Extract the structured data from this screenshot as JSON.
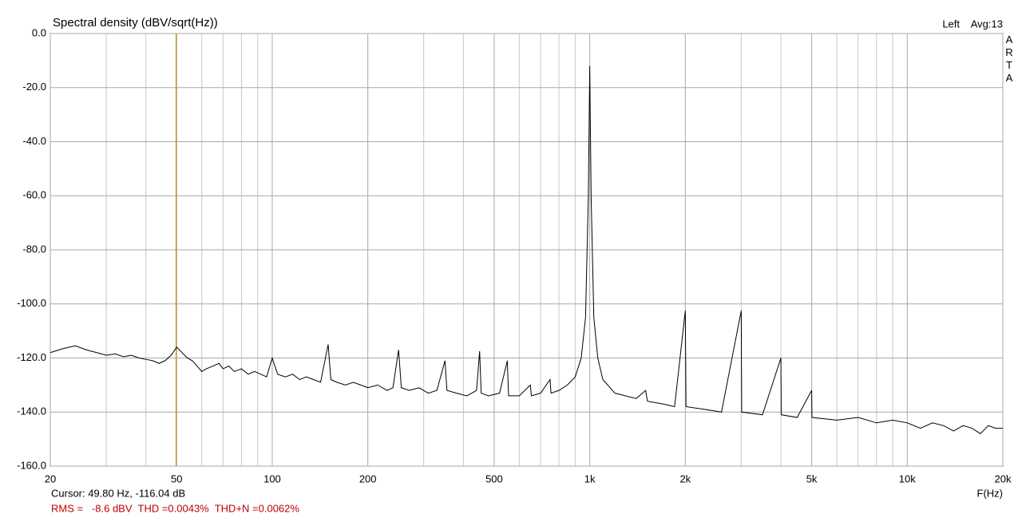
{
  "chart_data": {
    "type": "line",
    "title": "Spectral density (dBV/sqrt(Hz))",
    "channel": "Left",
    "averages": "Avg:13",
    "brand": "ARTA",
    "x_label": "F(Hz)",
    "cursor": {
      "label": "Cursor: 49.80 Hz, -116.04 dB",
      "x": 49.8,
      "color": "#c89b00"
    },
    "measurements": "RMS =   -8.6 dBV  THD =0.0043%  THD+N =0.0062%",
    "x_scale": "log",
    "color": "#000000",
    "grid": true,
    "xlim": [
      20,
      20000
    ],
    "ylim": [
      -160,
      0
    ],
    "xticks": [
      20,
      50,
      100,
      200,
      500,
      {
        "value": 1000,
        "label": "1k"
      },
      {
        "value": 2000,
        "label": "2k"
      },
      {
        "value": 5000,
        "label": "5k"
      },
      {
        "value": 10000,
        "label": "10k"
      },
      {
        "value": 20000,
        "label": "20k"
      }
    ],
    "x_minor_grid": [
      30,
      40,
      60,
      70,
      80,
      90,
      300,
      400,
      600,
      700,
      800,
      900,
      3000,
      4000,
      6000,
      7000,
      8000,
      9000
    ],
    "yticks": [
      {
        "value": 0,
        "label": "0.0"
      },
      {
        "value": -20,
        "label": "-20.0"
      },
      {
        "value": -40,
        "label": "-40.0"
      },
      {
        "value": -60,
        "label": "-60.0"
      },
      {
        "value": -80,
        "label": "-80.0"
      },
      {
        "value": -100,
        "label": "-100.0"
      },
      {
        "value": -120,
        "label": "-120.0"
      },
      {
        "value": -140,
        "label": "-140.0"
      },
      {
        "value": -160,
        "label": "-160.0"
      }
    ],
    "x": [
      20,
      22,
      24,
      26,
      28,
      30,
      32,
      34,
      36,
      38,
      40,
      42,
      44,
      46,
      48,
      50,
      52,
      54,
      56,
      58,
      60,
      62,
      65,
      68,
      70,
      73,
      76,
      80,
      84,
      88,
      92,
      96,
      100,
      104,
      110,
      116,
      122,
      128,
      135,
      142,
      150,
      153,
      160,
      170,
      180,
      190,
      200,
      215,
      230,
      240,
      250,
      255,
      270,
      290,
      310,
      330,
      350,
      355,
      380,
      410,
      440,
      450,
      455,
      480,
      520,
      550,
      555,
      600,
      650,
      655,
      700,
      750,
      755,
      800,
      850,
      900,
      940,
      970,
      990,
      1000,
      1010,
      1030,
      1060,
      1100,
      1200,
      1400,
      1500,
      1520,
      1700,
      1850,
      2000,
      2010,
      2300,
      2600,
      3000,
      3010,
      3500,
      4000,
      4010,
      4500,
      5000,
      5010,
      6000,
      7000,
      8000,
      9000,
      10000,
      11000,
      12000,
      13000,
      14000,
      15000,
      16000,
      17000,
      18000,
      19000,
      20000
    ],
    "values": [
      -118,
      -116.5,
      -115.5,
      -117,
      -118,
      -119,
      -118.5,
      -119.5,
      -119,
      -120,
      -120.5,
      -121,
      -122,
      -121,
      -119,
      -116,
      -118,
      -120,
      -121,
      -123,
      -125,
      -124,
      -123,
      -122,
      -124,
      -123,
      -125,
      -124,
      -126,
      -125,
      -126,
      -127,
      -120,
      -126,
      -127,
      -126,
      -128,
      -127,
      -128,
      -129,
      -115,
      -128,
      -129,
      -130,
      -129,
      -130,
      -131,
      -130,
      -132,
      -131,
      -117,
      -131,
      -132,
      -131,
      -133,
      -132,
      -121,
      -132,
      -133,
      -134,
      -132,
      -117.5,
      -133,
      -134,
      -133,
      -121,
      -134,
      -134,
      -130,
      -134,
      -133,
      -128,
      -133,
      -132,
      -130,
      -127,
      -120,
      -105,
      -60,
      -12,
      -60,
      -105,
      -120,
      -128,
      -133,
      -135,
      -132,
      -136,
      -137,
      -138,
      -102.5,
      -138,
      -139,
      -140,
      -102.5,
      -140,
      -141,
      -120,
      -141,
      -142,
      -132,
      -142,
      -143,
      -142,
      -144,
      -143,
      -144,
      -146,
      -144,
      -145,
      -147,
      -145,
      -146,
      -148,
      -145,
      -146,
      -146
    ]
  }
}
